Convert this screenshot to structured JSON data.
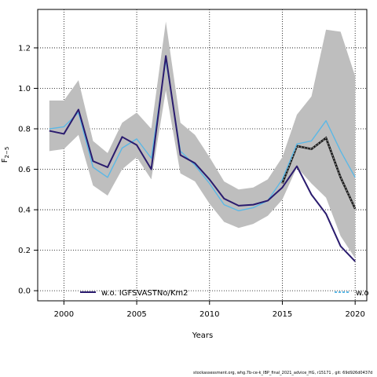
{
  "chart_data": {
    "type": "line",
    "xlabel": "Years",
    "ylabel_main": "F",
    "ylabel_sub": "2−5",
    "xticks": [
      2000,
      2005,
      2010,
      2015,
      2020
    ],
    "xtick_labels": [
      "2000",
      "2005",
      "2010",
      "2015",
      "2020"
    ],
    "yticks": [
      0.0,
      0.2,
      0.4,
      0.6,
      0.8,
      1.0,
      1.2
    ],
    "ytick_labels": [
      "0.0",
      "0.2",
      "0.4",
      "0.6",
      "0.8",
      "1.0",
      "1.2"
    ],
    "xlim": [
      1998.2,
      2020.8
    ],
    "ylim": [
      -0.05,
      1.39
    ],
    "grid": true,
    "legend_placement": "bottom",
    "confidence_band": {
      "x": [
        1999,
        2000,
        2001,
        2002,
        2003,
        2004,
        2005,
        2006,
        2007,
        2008,
        2009,
        2010,
        2011,
        2012,
        2013,
        2014,
        2015,
        2016,
        2017,
        2018,
        2019,
        2020
      ],
      "upper": [
        0.94,
        0.94,
        1.04,
        0.74,
        0.68,
        0.83,
        0.88,
        0.8,
        1.33,
        0.83,
        0.77,
        0.66,
        0.54,
        0.5,
        0.51,
        0.55,
        0.66,
        0.87,
        0.96,
        1.29,
        1.28,
        1.06
      ],
      "lower": [
        0.69,
        0.7,
        0.77,
        0.52,
        0.47,
        0.6,
        0.66,
        0.55,
        0.99,
        0.58,
        0.54,
        0.43,
        0.34,
        0.31,
        0.33,
        0.37,
        0.45,
        0.61,
        0.53,
        0.46,
        0.27,
        0.16
      ],
      "color": "#bebebe"
    },
    "series": [
      {
        "name": "w.o. IGFSVASTNo/Km2",
        "color": "#2a1b6e",
        "style": "solid",
        "x": [
          1999,
          2000,
          2001,
          2002,
          2003,
          2004,
          2005,
          2006,
          2007,
          2008,
          2009,
          2010,
          2011,
          2012,
          2013,
          2014,
          2015,
          2016,
          2017,
          2018,
          2019,
          2020
        ],
        "values": [
          0.79,
          0.775,
          0.895,
          0.64,
          0.61,
          0.76,
          0.72,
          0.6,
          1.16,
          0.67,
          0.63,
          0.55,
          0.455,
          0.42,
          0.425,
          0.445,
          0.51,
          0.615,
          0.475,
          0.38,
          0.22,
          0.145
        ]
      },
      {
        "name": "w.o",
        "color": "#5bb8e6",
        "style": "solid",
        "x": [
          1999,
          2000,
          2001,
          2002,
          2003,
          2004,
          2005,
          2006,
          2007,
          2008,
          2009,
          2010,
          2011,
          2012,
          2013,
          2014,
          2015,
          2016,
          2017,
          2018,
          2019,
          2020
        ],
        "values": [
          0.8,
          0.81,
          0.88,
          0.61,
          0.56,
          0.705,
          0.75,
          0.655,
          1.14,
          0.69,
          0.62,
          0.53,
          0.425,
          0.395,
          0.41,
          0.445,
          0.55,
          0.725,
          0.74,
          0.84,
          0.69,
          0.56
        ]
      },
      {
        "name": "",
        "color": "#444444",
        "style": "dashed",
        "x": [
          2015,
          2016,
          2017,
          2018,
          2019,
          2020
        ],
        "values": [
          0.53,
          0.715,
          0.7,
          0.755,
          0.56,
          0.405
        ]
      }
    ]
  },
  "footer": "stockassessment.org, whg.7b-ce-k_IBP_final_2021_advice_HG, r15171 , git: 69d926d0437d"
}
